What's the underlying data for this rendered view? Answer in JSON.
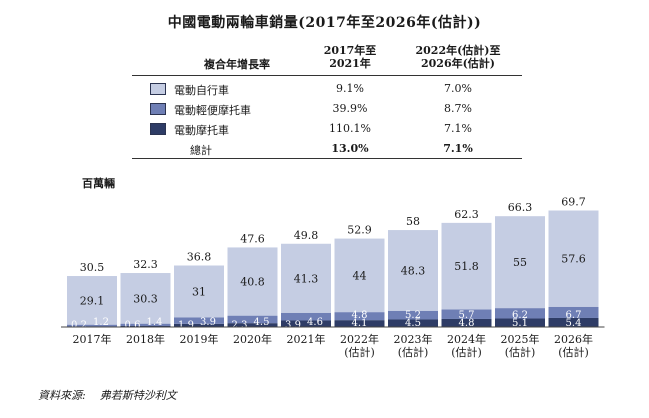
{
  "title": "中國電動兩輪車銷量(2017年至2026年(估計))",
  "table": {
    "header_metric": "複合年增長率",
    "header_col1": [
      "2017年至",
      "2021年"
    ],
    "header_col2": [
      "2022年(估計)至",
      "2026年(估計)"
    ],
    "rows": [
      {
        "label": "電動自行車",
        "v1": "9.1%",
        "v2": "7.0%",
        "color": "#c5cde3"
      },
      {
        "label": "電動輕便摩托車",
        "v1": "39.9%",
        "v2": "8.7%",
        "color": "#6f7fb5"
      },
      {
        "label": "電動摩托車",
        "v1": "110.1%",
        "v2": "7.1%",
        "color": "#2e3c66"
      }
    ],
    "total": {
      "label": "總計",
      "v1": "13.0%",
      "v2": "7.1%"
    }
  },
  "unit_label": "百萬輛",
  "source": {
    "label": "資料來源:",
    "text": "弗若斯特沙利文"
  },
  "chart_data": {
    "type": "bar",
    "stacked": true,
    "categories": [
      [
        "2017年"
      ],
      [
        "2018年"
      ],
      [
        "2019年"
      ],
      [
        "2020年"
      ],
      [
        "2021年"
      ],
      [
        "2022年",
        "(估計)"
      ],
      [
        "2023年",
        "(估計)"
      ],
      [
        "2024年",
        "(估計)"
      ],
      [
        "2025年",
        "(估計)"
      ],
      [
        "2026年",
        "(估計)"
      ]
    ],
    "series": [
      {
        "name": "電動摩托車",
        "color": "#2e3c66",
        "label_color": "#ffffff",
        "values": [
          0.2,
          0.6,
          1.9,
          2.3,
          3.9,
          4.1,
          4.5,
          4.8,
          5.1,
          5.4
        ]
      },
      {
        "name": "電動輕便摩托車",
        "color": "#6f7fb5",
        "label_color": "#ffffff",
        "values": [
          1.2,
          1.4,
          3.9,
          4.5,
          4.6,
          4.8,
          5.2,
          5.7,
          6.2,
          6.7
        ]
      },
      {
        "name": "電動自行車",
        "color": "#c5cde3",
        "label_color": "#1a1a1a",
        "values": [
          29.1,
          30.3,
          31.0,
          40.8,
          41.3,
          44.0,
          48.3,
          51.8,
          55.0,
          57.6
        ]
      }
    ],
    "totals": [
      30.5,
      32.3,
      36.8,
      47.6,
      49.8,
      52.9,
      58.0,
      62.3,
      66.3,
      69.7
    ],
    "ylim": [
      0,
      70
    ]
  }
}
